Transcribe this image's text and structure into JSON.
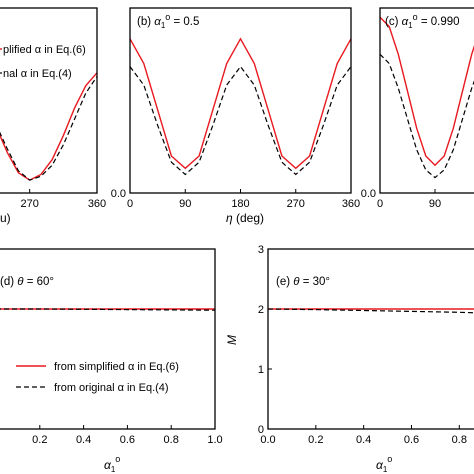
{
  "colors": {
    "simplified": "#e8191f",
    "original": "#000000"
  },
  "legend": {
    "simplified": "from simplified α in Eq.(6)",
    "original": "from original α in Eq.(4)"
  },
  "legend_top": {
    "simplified": "plified α in Eq.(6)",
    "original": "nal α in Eq.(4)"
  },
  "axis_labels": {
    "eta": "η (deg)",
    "eta_partial": "u)",
    "alpha": "α",
    "alpha_sub": "1",
    "alpha_sup": "o",
    "m": "M"
  },
  "chart_data": [
    {
      "type": "line",
      "title": "",
      "xlabel": "",
      "xlim": [
        225,
        360
      ],
      "ylim": [
        0,
        0.5
      ],
      "xticks": [
        "270",
        "360"
      ],
      "yticks": [],
      "series": [
        {
          "name": "from simplified α in Eq.(6)",
          "x": [
            225,
            240,
            255,
            270,
            285,
            300,
            315,
            330,
            345,
            360
          ],
          "y": [
            0.18,
            0.11,
            0.055,
            0.035,
            0.05,
            0.09,
            0.155,
            0.23,
            0.29,
            0.325
          ]
        },
        {
          "name": "from original α in Eq.(4)",
          "x": [
            225,
            240,
            255,
            270,
            285,
            300,
            315,
            330,
            345,
            360
          ],
          "y": [
            0.185,
            0.12,
            0.06,
            0.035,
            0.045,
            0.075,
            0.13,
            0.2,
            0.27,
            0.315
          ]
        }
      ]
    },
    {
      "type": "line",
      "title": "(b) α1° = 0.5",
      "xlabel": "η (deg)",
      "xlim": [
        0,
        360
      ],
      "ylim": [
        0,
        0.6
      ],
      "xticks": [
        "0",
        "90",
        "180",
        "270",
        "360"
      ],
      "yticks": [
        "0.0"
      ],
      "series": [
        {
          "name": "from simplified α in Eq.(6)",
          "x": [
            0,
            22.5,
            45,
            67.5,
            90,
            112.5,
            135,
            157.5,
            180,
            202.5,
            225,
            247.5,
            270,
            292.5,
            315,
            337.5,
            360
          ],
          "y": [
            0.5,
            0.42,
            0.27,
            0.12,
            0.08,
            0.12,
            0.27,
            0.42,
            0.5,
            0.42,
            0.27,
            0.12,
            0.08,
            0.12,
            0.27,
            0.42,
            0.5
          ]
        },
        {
          "name": "from original α in Eq.(4)",
          "x": [
            0,
            22.5,
            45,
            67.5,
            90,
            112.5,
            135,
            157.5,
            180,
            202.5,
            225,
            247.5,
            270,
            292.5,
            315,
            337.5,
            360
          ],
          "y": [
            0.41,
            0.35,
            0.22,
            0.1,
            0.06,
            0.1,
            0.22,
            0.35,
            0.41,
            0.35,
            0.22,
            0.1,
            0.06,
            0.1,
            0.22,
            0.35,
            0.41
          ]
        }
      ]
    },
    {
      "type": "line",
      "title": "(c) α1° = 0.990",
      "xlabel": "",
      "xlim": [
        0,
        180
      ],
      "ylim": [
        0,
        0.6
      ],
      "xticks": [
        "0",
        "90"
      ],
      "yticks": [
        "0.0"
      ],
      "series": [
        {
          "name": "from simplified α in Eq.(6)",
          "x": [
            0,
            15,
            30,
            45,
            60,
            75,
            90,
            105,
            120,
            135,
            150,
            165,
            180
          ],
          "y": [
            0.57,
            0.54,
            0.45,
            0.33,
            0.21,
            0.12,
            0.09,
            0.12,
            0.21,
            0.33,
            0.45,
            0.54,
            0.57
          ]
        },
        {
          "name": "from original α in Eq.(4)",
          "x": [
            0,
            15,
            30,
            45,
            60,
            75,
            90,
            105,
            120,
            135,
            150,
            165,
            180
          ],
          "y": [
            0.45,
            0.42,
            0.34,
            0.24,
            0.14,
            0.075,
            0.05,
            0.075,
            0.14,
            0.24,
            0.34,
            0.42,
            0.45
          ]
        }
      ]
    },
    {
      "type": "line",
      "title": "(d) θ = 60°",
      "xlabel": "α1o",
      "xlim": [
        0,
        1.0
      ],
      "ylim": [
        0,
        3
      ],
      "xticks": [
        "0.2",
        "0.4",
        "0.6",
        "0.8",
        "1.0"
      ],
      "yticks": [],
      "series": [
        {
          "name": "from simplified α in Eq.(6)",
          "x": [
            0,
            0.2,
            0.4,
            0.6,
            0.8,
            1.0
          ],
          "y": [
            2.0,
            2.0,
            2.0,
            2.0,
            2.0,
            2.0
          ]
        },
        {
          "name": "from original α in Eq.(4)",
          "x": [
            0,
            0.2,
            0.4,
            0.6,
            0.8,
            1.0
          ],
          "y": [
            2.0,
            2.0,
            1.995,
            1.99,
            1.985,
            1.98
          ]
        }
      ]
    },
    {
      "type": "line",
      "title": "(e) θ = 30°",
      "xlabel": "α1o",
      "ylabel": "M",
      "xlim": [
        0,
        0.92
      ],
      "ylim": [
        0,
        3
      ],
      "xticks": [
        "0.0",
        "0.2",
        "0.4",
        "0.6",
        "0.8"
      ],
      "yticks": [
        "0",
        "1",
        "2",
        "3"
      ],
      "series": [
        {
          "name": "from simplified α in Eq.(6)",
          "x": [
            0,
            0.2,
            0.4,
            0.6,
            0.8,
            0.92
          ],
          "y": [
            2.0,
            2.0,
            2.0,
            2.0,
            2.0,
            2.0
          ]
        },
        {
          "name": "from original α in Eq.(4)",
          "x": [
            0,
            0.2,
            0.4,
            0.6,
            0.8,
            0.92
          ],
          "y": [
            2.0,
            1.99,
            1.975,
            1.96,
            1.945,
            1.93
          ]
        }
      ]
    }
  ]
}
